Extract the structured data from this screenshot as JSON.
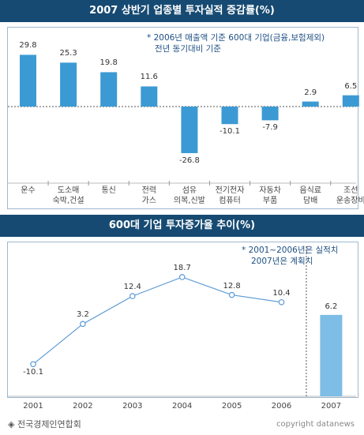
{
  "chart_data": [
    {
      "type": "bar",
      "title": "2007 상반기 업종별 투자실적 증감률(%)",
      "note": [
        "* 2006년 매출액 기준 600대 기업(금융,보험제외)",
        "전년 동기대비 기준"
      ],
      "categories": [
        {
          "line1": "운수",
          "line2": ""
        },
        {
          "line1": "도소매",
          "line2": "숙박,건설"
        },
        {
          "line1": "통신",
          "line2": ""
        },
        {
          "line1": "전력",
          "line2": "가스"
        },
        {
          "line1": "섬유",
          "line2": "의복,신발"
        },
        {
          "line1": "전기전자",
          "line2": "컴퓨터"
        },
        {
          "line1": "자동차",
          "line2": "부품"
        },
        {
          "line1": "음식료",
          "line2": "담배"
        },
        {
          "line1": "조선",
          "line2": "운송장비"
        }
      ],
      "values": [
        29.8,
        25.3,
        19.8,
        11.6,
        -26.8,
        -10.1,
        -7.9,
        2.9,
        6.5
      ],
      "value_labels": [
        "29.8",
        "25.3",
        "19.8",
        "11.6",
        "-26.8",
        "-10.1",
        "-7.9",
        "2.9",
        "6.5"
      ],
      "color": "#3b9ad3"
    },
    {
      "type": "line",
      "title": "600대 기업 투자증가율 추이(%)",
      "note": [
        "* 2001~2006년은 실적치",
        "2007년은 계획치"
      ],
      "x": [
        "2001",
        "2002",
        "2003",
        "2004",
        "2005",
        "2006",
        "2007"
      ],
      "series": [
        {
          "kind": "actual",
          "values": [
            -10.1,
            3.2,
            12.4,
            18.7,
            12.8,
            10.4,
            null
          ]
        },
        {
          "kind": "plan",
          "values": [
            null,
            null,
            null,
            null,
            null,
            null,
            6.2
          ]
        }
      ],
      "value_labels": [
        "-10.1",
        "3.2",
        "12.4",
        "18.7",
        "12.8",
        "10.4",
        "6.2"
      ],
      "line_color": "#5c9bd6",
      "bar_color": "#7dbde6"
    }
  ],
  "source": "◈ 전국경제인연합회",
  "copyright": "copyright datanews"
}
